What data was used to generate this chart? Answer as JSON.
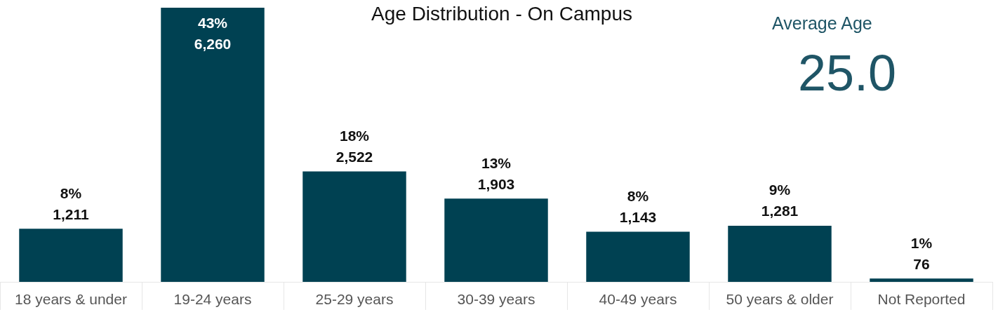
{
  "chart_data": {
    "type": "bar",
    "title": "Age Distribution - On Campus",
    "categories": [
      "18 years & under",
      "19-24 years",
      "25-29 years",
      "30-39 years",
      "40-49 years",
      "50 years & older",
      "Not Reported"
    ],
    "values": [
      1211,
      6260,
      2522,
      1903,
      1143,
      1281,
      76
    ],
    "value_labels": [
      "8%\n1,211",
      "43%\n6,260",
      "18%\n2,522",
      "13%\n1,903",
      "8%\n1,143",
      "9%\n1,281",
      "1%\n76"
    ],
    "color": "#004152",
    "annotations": [
      "Average Age",
      "25.0"
    ],
    "grid": false
  }
}
